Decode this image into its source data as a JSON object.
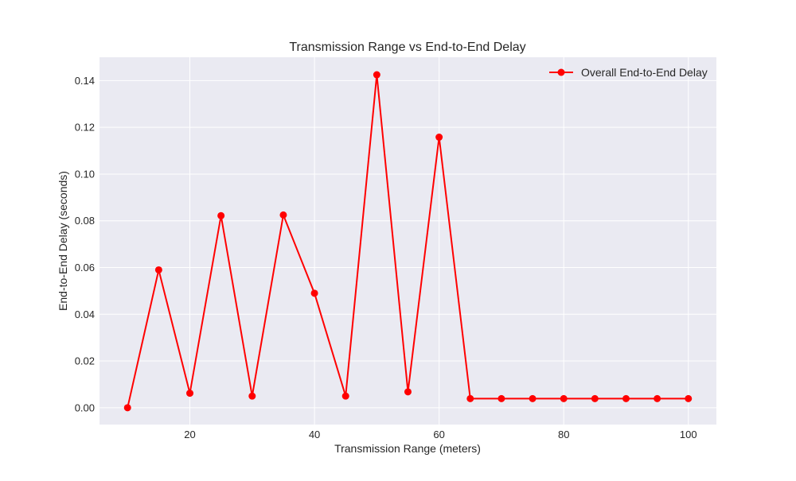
{
  "chart_data": {
    "type": "line",
    "title": "Transmission Range vs End-to-End Delay",
    "xlabel": "Transmission Range (meters)",
    "ylabel": "End-to-End Delay (seconds)",
    "xlim": [
      5.5,
      104.5
    ],
    "ylim": [
      -0.0072,
      0.15
    ],
    "xticks": [
      20,
      40,
      60,
      80,
      100
    ],
    "xtick_labels": [
      "20",
      "40",
      "60",
      "80",
      "100"
    ],
    "yticks": [
      0.0,
      0.02,
      0.04,
      0.06,
      0.08,
      0.1,
      0.12,
      0.14
    ],
    "ytick_labels": [
      "0.00",
      "0.02",
      "0.04",
      "0.06",
      "0.08",
      "0.10",
      "0.12",
      "0.14"
    ],
    "grid": true,
    "legend_position": "top-right",
    "x": [
      10,
      15,
      20,
      25,
      30,
      35,
      40,
      45,
      50,
      55,
      60,
      65,
      70,
      75,
      80,
      85,
      90,
      95,
      100
    ],
    "series": [
      {
        "name": "Overall End-to-End Delay",
        "color": "#ff0000",
        "marker": "circle",
        "values": [
          0.0,
          0.059,
          0.0062,
          0.0822,
          0.005,
          0.0825,
          0.049,
          0.005,
          0.1425,
          0.0068,
          0.1158,
          0.0039,
          0.0039,
          0.0039,
          0.0039,
          0.0039,
          0.0039,
          0.0039,
          0.0039
        ]
      }
    ]
  },
  "colors": {
    "plot_background": "#eaeaf2",
    "grid": "#ffffff",
    "series": "#ff0000"
  }
}
